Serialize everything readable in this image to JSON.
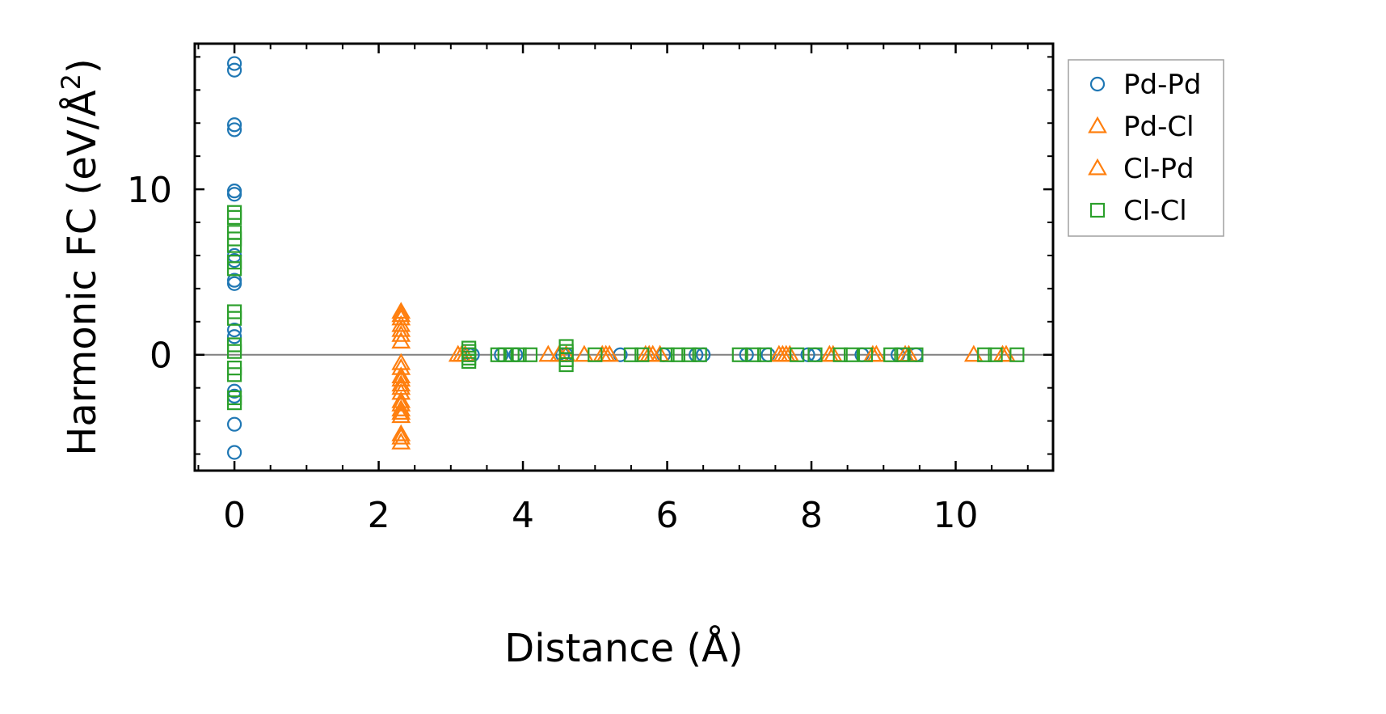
{
  "chart_data": {
    "type": "scatter",
    "xlabel": "Distance (Å)",
    "ylabel": "Harmonic FC (eV/Å²)",
    "xlim": [
      -0.55,
      11.35
    ],
    "ylim": [
      -7.0,
      18.8
    ],
    "xticks": [
      0,
      2,
      4,
      6,
      8,
      10
    ],
    "yticks": [
      0,
      10
    ],
    "grid": false,
    "legend_position": "outside-right-top",
    "zero_line": true,
    "series": [
      {
        "name": "Pd-Pd",
        "marker": "circle",
        "color": "#1f77b4",
        "points": [
          [
            0,
            17.6
          ],
          [
            0,
            17.2
          ],
          [
            0,
            13.9
          ],
          [
            0,
            13.6
          ],
          [
            0,
            9.9
          ],
          [
            0,
            9.7
          ],
          [
            0,
            6.0
          ],
          [
            0,
            5.7
          ],
          [
            0,
            4.5
          ],
          [
            0,
            4.3
          ],
          [
            0,
            1.5
          ],
          [
            0,
            1.1
          ],
          [
            0,
            -2.2
          ],
          [
            0,
            -2.5
          ],
          [
            0,
            -4.2
          ],
          [
            0,
            -5.9
          ],
          [
            3.25,
            0.0
          ],
          [
            3.3,
            0.0
          ],
          [
            3.7,
            0.0
          ],
          [
            3.9,
            0.0
          ],
          [
            4.55,
            0.0
          ],
          [
            4.6,
            0.0
          ],
          [
            5.35,
            0.0
          ],
          [
            5.95,
            0.0
          ],
          [
            6.4,
            0.0
          ],
          [
            6.5,
            0.0
          ],
          [
            7.1,
            0.0
          ],
          [
            7.4,
            0.0
          ],
          [
            7.95,
            0.0
          ],
          [
            8.05,
            0.0
          ],
          [
            8.7,
            0.0
          ],
          [
            9.2,
            0.0
          ],
          [
            9.45,
            0.0
          ]
        ]
      },
      {
        "name": "Pd-Cl",
        "marker": "triangle",
        "color": "#ff7f0e",
        "points": [
          [
            2.31,
            2.6
          ],
          [
            2.31,
            2.2
          ],
          [
            2.31,
            1.8
          ],
          [
            2.31,
            1.5
          ],
          [
            2.31,
            0.8
          ],
          [
            2.31,
            -0.8
          ],
          [
            2.31,
            -1.3
          ],
          [
            2.31,
            -1.8
          ],
          [
            2.31,
            -2.3
          ],
          [
            2.31,
            -2.8
          ],
          [
            2.31,
            -3.3
          ],
          [
            2.31,
            -3.7
          ],
          [
            2.31,
            -4.8
          ],
          [
            2.31,
            -5.3
          ],
          [
            3.1,
            0.0
          ],
          [
            3.2,
            0.0
          ],
          [
            4.35,
            0.0
          ],
          [
            4.6,
            0.0
          ],
          [
            4.85,
            0.0
          ],
          [
            5.1,
            0.0
          ],
          [
            5.2,
            0.0
          ],
          [
            5.7,
            0.0
          ],
          [
            5.8,
            0.0
          ],
          [
            5.9,
            0.0
          ],
          [
            7.55,
            0.0
          ],
          [
            7.65,
            0.0
          ],
          [
            8.25,
            0.0
          ],
          [
            8.85,
            0.0
          ],
          [
            9.35,
            0.0
          ],
          [
            10.25,
            0.0
          ],
          [
            10.7,
            0.0
          ]
        ]
      },
      {
        "name": "Cl-Pd",
        "marker": "triangle",
        "color": "#ff7f0e",
        "points": [
          [
            2.31,
            2.4
          ],
          [
            2.31,
            1.2
          ],
          [
            2.31,
            -0.5
          ],
          [
            2.31,
            -1.5
          ],
          [
            2.31,
            -2.0
          ],
          [
            2.31,
            -3.0
          ],
          [
            2.31,
            -3.5
          ],
          [
            2.31,
            -5.0
          ],
          [
            3.15,
            0.0
          ],
          [
            4.5,
            0.0
          ],
          [
            5.15,
            0.0
          ],
          [
            5.75,
            0.0
          ],
          [
            7.6,
            0.0
          ],
          [
            7.7,
            0.0
          ],
          [
            8.3,
            0.0
          ],
          [
            8.9,
            0.0
          ],
          [
            9.3,
            0.0
          ],
          [
            10.65,
            0.0
          ]
        ]
      },
      {
        "name": "Cl-Cl",
        "marker": "square",
        "color": "#2ca02c",
        "points": [
          [
            0,
            8.6
          ],
          [
            0,
            8.3
          ],
          [
            0,
            7.4
          ],
          [
            0,
            7.0
          ],
          [
            0,
            6.6
          ],
          [
            0,
            5.6
          ],
          [
            0,
            5.2
          ],
          [
            0,
            2.6
          ],
          [
            0,
            2.2
          ],
          [
            0,
            0.6
          ],
          [
            0,
            0.2
          ],
          [
            0,
            -0.8
          ],
          [
            0,
            -1.2
          ],
          [
            0,
            -2.6
          ],
          [
            0,
            -2.9
          ],
          [
            3.25,
            0.4
          ],
          [
            3.25,
            0.2
          ],
          [
            3.25,
            0.0
          ],
          [
            3.25,
            -0.2
          ],
          [
            3.25,
            -0.4
          ],
          [
            3.65,
            0.0
          ],
          [
            3.75,
            0.0
          ],
          [
            3.85,
            0.0
          ],
          [
            3.95,
            0.0
          ],
          [
            4.1,
            0.0
          ],
          [
            4.6,
            0.5
          ],
          [
            4.6,
            0.2
          ],
          [
            4.6,
            0.0
          ],
          [
            4.6,
            -0.3
          ],
          [
            4.6,
            -0.6
          ],
          [
            5.0,
            0.0
          ],
          [
            5.5,
            0.0
          ],
          [
            5.65,
            0.0
          ],
          [
            6.0,
            0.0
          ],
          [
            6.15,
            0.0
          ],
          [
            6.3,
            0.0
          ],
          [
            6.45,
            0.0
          ],
          [
            7.0,
            0.0
          ],
          [
            7.2,
            0.0
          ],
          [
            7.35,
            0.0
          ],
          [
            7.8,
            0.0
          ],
          [
            8.05,
            0.0
          ],
          [
            8.4,
            0.0
          ],
          [
            8.55,
            0.0
          ],
          [
            8.75,
            0.0
          ],
          [
            9.1,
            0.0
          ],
          [
            9.25,
            0.0
          ],
          [
            9.45,
            0.0
          ],
          [
            10.4,
            0.0
          ],
          [
            10.55,
            0.0
          ],
          [
            10.85,
            0.0
          ]
        ]
      }
    ]
  }
}
